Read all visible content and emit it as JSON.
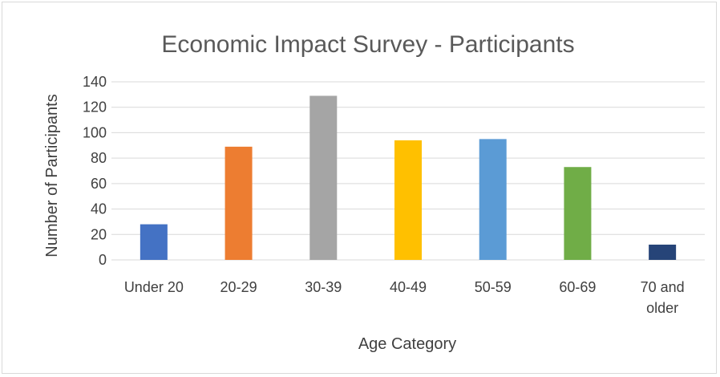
{
  "chart_data": {
    "type": "bar",
    "title": "Economic Impact Survey - Participants",
    "xlabel": "Age Category",
    "ylabel": "Number of Participants",
    "categories": [
      "Under 20",
      "20-29",
      "30-39",
      "40-49",
      "50-59",
      "60-69",
      "70 and older"
    ],
    "category_lines": [
      [
        "Under 20"
      ],
      [
        "20-29"
      ],
      [
        "30-39"
      ],
      [
        "40-49"
      ],
      [
        "50-59"
      ],
      [
        "60-69"
      ],
      [
        "70 and",
        "older"
      ]
    ],
    "values": [
      28,
      89,
      129,
      94,
      95,
      73,
      12
    ],
    "colors": [
      "#4472C4",
      "#ED7D31",
      "#A5A5A5",
      "#FFC000",
      "#5B9BD5",
      "#70AD47",
      "#264478"
    ],
    "ylim": [
      0,
      140
    ],
    "yticks": [
      0,
      20,
      40,
      60,
      80,
      100,
      120,
      140
    ],
    "grid": true,
    "legend": "none"
  }
}
